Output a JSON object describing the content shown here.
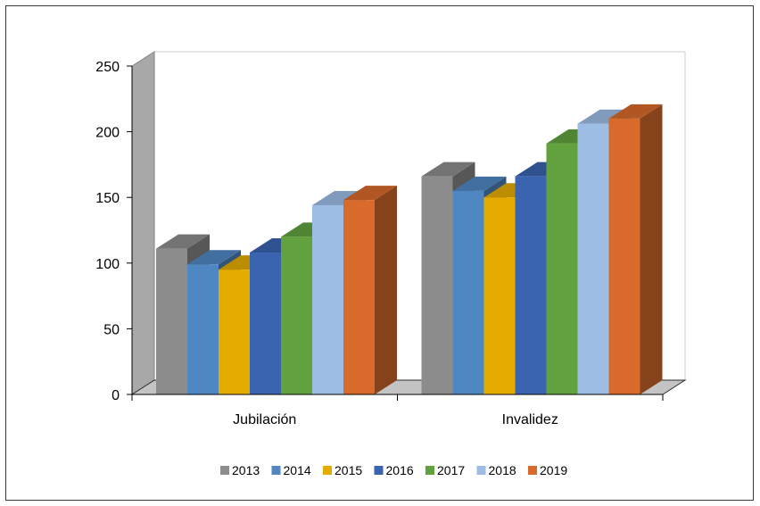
{
  "chart_data": {
    "type": "bar",
    "title": "",
    "xlabel": "",
    "ylabel": "",
    "ylim": [
      0,
      250
    ],
    "yticks": [
      0,
      50,
      100,
      150,
      200,
      250
    ],
    "categories": [
      "Jubilación",
      "Invalidez"
    ],
    "series": [
      {
        "name": "2013",
        "color": "#8c8c8c",
        "values": [
          111,
          166
        ]
      },
      {
        "name": "2014",
        "color": "#4f87c2",
        "values": [
          99,
          155
        ]
      },
      {
        "name": "2015",
        "color": "#e5ac00",
        "values": [
          95,
          150
        ]
      },
      {
        "name": "2016",
        "color": "#3a63b0",
        "values": [
          108,
          166
        ]
      },
      {
        "name": "2017",
        "color": "#62a23e",
        "values": [
          120,
          191
        ]
      },
      {
        "name": "2018",
        "color": "#9dbde5",
        "values": [
          144,
          206
        ]
      },
      {
        "name": "2019",
        "color": "#d86a2b",
        "values": [
          148,
          210
        ]
      }
    ],
    "legend_position": "bottom",
    "three_d": true,
    "grid": false
  }
}
